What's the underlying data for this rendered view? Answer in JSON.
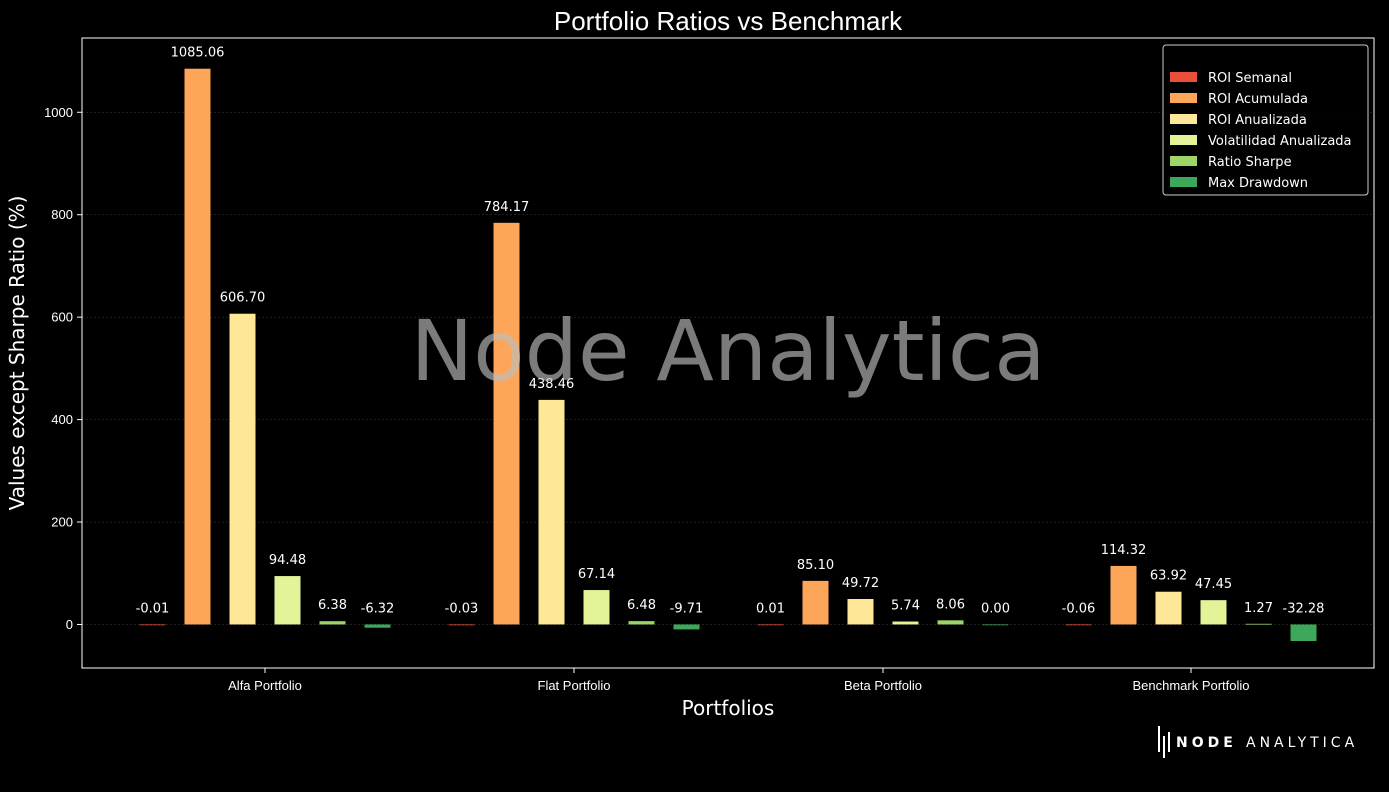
{
  "chart_data": {
    "type": "bar",
    "title": "Portfolio Ratios vs Benchmark",
    "xlabel": "Portfolios",
    "ylabel": "Values except Sharpe Ratio (%)",
    "categories": [
      "Alfa Portfolio",
      "Flat Portfolio",
      "Beta Portfolio",
      "Benchmark Portfolio"
    ],
    "ylim": [
      -85,
      1145
    ],
    "yticks": [
      0,
      200,
      400,
      600,
      800,
      1000
    ],
    "grid": true,
    "legend_position": "top-right",
    "series": [
      {
        "name": "ROI Semanal",
        "color": "#e8503a",
        "values": [
          -0.01,
          -0.03,
          0.01,
          -0.06
        ],
        "labels": [
          "-0.01",
          "-0.03",
          "0.01",
          "-0.06"
        ]
      },
      {
        "name": "ROI Acumulada",
        "color": "#fda65a",
        "values": [
          1085.06,
          784.17,
          85.1,
          114.32
        ],
        "labels": [
          "1085.06",
          "784.17",
          "85.10",
          "114.32"
        ]
      },
      {
        "name": "ROI Anualizada",
        "color": "#fee797",
        "values": [
          606.7,
          438.46,
          49.72,
          63.92
        ],
        "labels": [
          "606.70",
          "438.46",
          "49.72",
          "63.92"
        ]
      },
      {
        "name": "Volatilidad Anualizada",
        "color": "#e3f498",
        "values": [
          94.48,
          67.14,
          5.74,
          47.45
        ],
        "labels": [
          "94.48",
          "67.14",
          "5.74",
          "47.45"
        ]
      },
      {
        "name": "Ratio Sharpe",
        "color": "#9dd569",
        "values": [
          6.38,
          6.48,
          8.06,
          1.27
        ],
        "labels": [
          "6.38",
          "6.48",
          "8.06",
          "1.27"
        ]
      },
      {
        "name": "Max Drawdown",
        "color": "#3ea85a",
        "values": [
          -6.32,
          -9.71,
          0.0,
          -32.28
        ],
        "labels": [
          "-6.32",
          "-9.71",
          "0.00",
          "-32.28"
        ]
      }
    ]
  },
  "watermark": "Node Analytica",
  "brand": {
    "word1": "NODE",
    "word2": "ANALYTICA",
    "icon": "node-analytica-logo-icon"
  }
}
